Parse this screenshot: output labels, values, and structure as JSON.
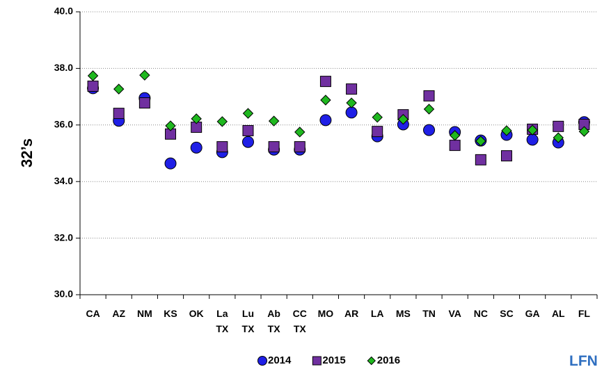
{
  "chart_data": {
    "type": "scatter",
    "y_label": "32’s",
    "categories": [
      "CA",
      "AZ",
      "NM",
      "KS",
      "OK",
      "La TX",
      "Lu TX",
      "Ab TX",
      "CC TX",
      "MO",
      "AR",
      "LA",
      "MS",
      "TN",
      "VA",
      "NC",
      "SC",
      "GA",
      "AL",
      "FL"
    ],
    "series": [
      {
        "name": "2014",
        "color": "#1f1fe6",
        "marker": "circle",
        "values": [
          37.3,
          36.15,
          36.95,
          34.64,
          35.2,
          35.04,
          35.4,
          35.13,
          35.13,
          36.17,
          36.44,
          35.6,
          36.02,
          35.82,
          35.75,
          35.45,
          35.65,
          35.48,
          35.38,
          36.1
        ]
      },
      {
        "name": "2015",
        "color": "#7030a0",
        "marker": "square",
        "values": [
          37.37,
          36.41,
          36.78,
          35.68,
          35.92,
          35.23,
          35.8,
          35.23,
          35.23,
          37.54,
          37.27,
          35.77,
          36.36,
          37.03,
          35.28,
          34.77,
          34.91,
          35.85,
          35.95,
          36.02
        ]
      },
      {
        "name": "2016",
        "color": "#1fb81f",
        "marker": "diamond",
        "values": [
          37.74,
          37.27,
          37.76,
          35.97,
          36.22,
          36.12,
          36.41,
          36.14,
          35.75,
          36.88,
          36.78,
          36.27,
          36.2,
          36.56,
          35.63,
          35.43,
          35.8,
          35.82,
          35.55,
          35.77
        ]
      }
    ],
    "ylim": [
      30,
      40
    ],
    "yticks": [
      {
        "value": 30,
        "label": "30.0"
      },
      {
        "value": 32,
        "label": "32.0"
      },
      {
        "value": 34,
        "label": "34.0"
      },
      {
        "value": 36,
        "label": "36.0"
      },
      {
        "value": 38,
        "label": "38.0"
      },
      {
        "value": 40,
        "label": "40.0"
      }
    ],
    "grid": true,
    "legend": "bottom",
    "watermark": "LFN"
  }
}
